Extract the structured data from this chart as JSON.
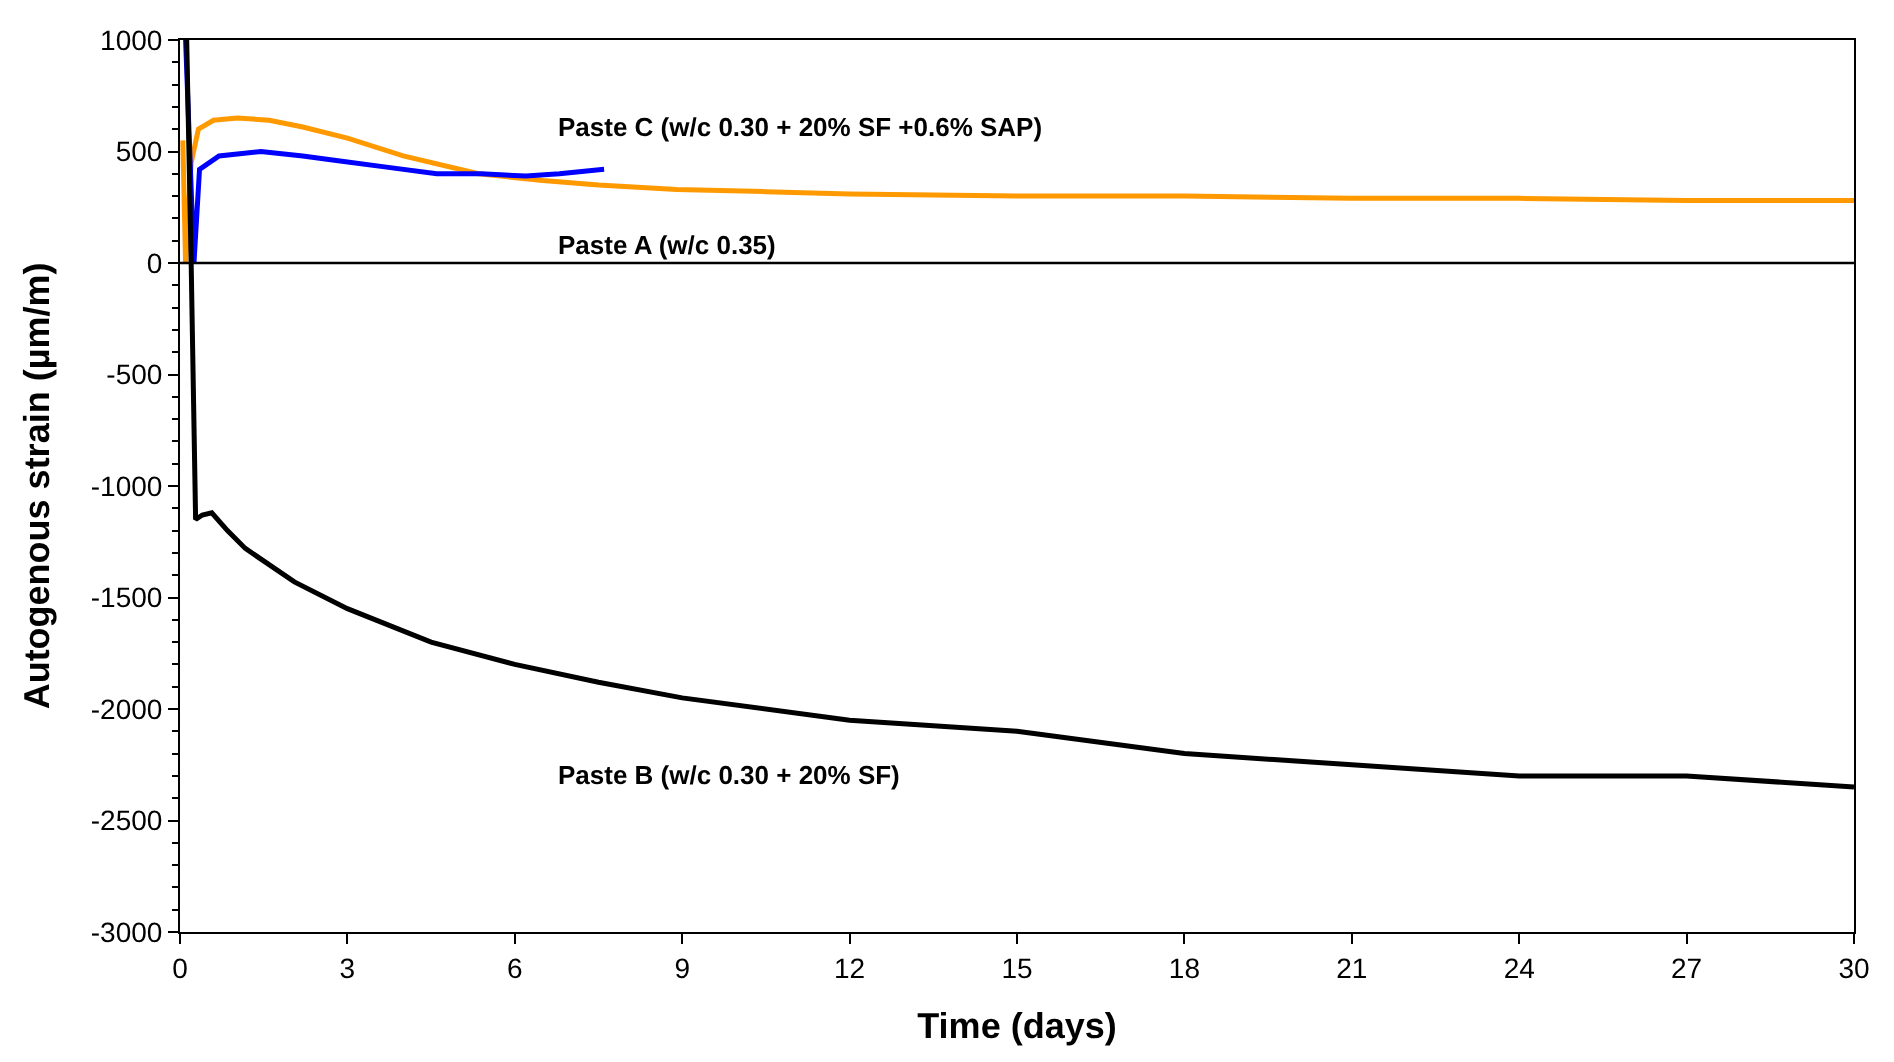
{
  "chart_data": {
    "type": "line",
    "xlabel": "Time (days)",
    "ylabel": "Autogenous strain (µm/m)",
    "xlim": [
      0,
      30
    ],
    "xticks": [
      0,
      3,
      6,
      9,
      12,
      15,
      18,
      21,
      24,
      27,
      30
    ],
    "ylim": [
      -3000,
      1000
    ],
    "yticks": [
      -3000,
      -2500,
      -2000,
      -1500,
      -1000,
      -500,
      0,
      500,
      1000
    ],
    "grid": false,
    "legend": false,
    "marker": "none",
    "line_style": "solid",
    "ref_lines": [
      {
        "axis": "y",
        "value": 0,
        "label": null,
        "color": "#000000"
      }
    ],
    "series": [
      {
        "name": "Paste A (w/c 0.35)",
        "color": "#ff9900",
        "x": [
          0.05,
          0.1,
          0.2,
          0.33,
          0.6,
          1.03,
          1.6,
          2.2,
          3,
          4,
          5.35,
          6.5,
          7.5,
          8.9,
          10.5,
          12,
          15,
          18,
          21,
          24,
          27,
          30
        ],
        "values": [
          550,
          0,
          450,
          600,
          640,
          650,
          640,
          610,
          560,
          480,
          400,
          370,
          350,
          330,
          320,
          310,
          300,
          300,
          290,
          290,
          280,
          280
        ]
      },
      {
        "name": "Paste C (w/c 0.30 + 20% SF +0.6% SAP)",
        "color": "#0000ff",
        "x": [
          0.1,
          0.25,
          0.35,
          0.7,
          1.45,
          2.2,
          2.8,
          3.7,
          4.6,
          5.4,
          6.2,
          6.8,
          7.2,
          7.6
        ],
        "values": [
          1000,
          0,
          420,
          480,
          500,
          480,
          460,
          430,
          400,
          400,
          390,
          400,
          410,
          420
        ]
      },
      {
        "name": "Paste B (w/c 0.30 + 20% SF)",
        "color": "#000000",
        "x": [
          0.12,
          0.2,
          0.28,
          0.4,
          0.57,
          0.85,
          1.17,
          2.05,
          3,
          4.5,
          6,
          7.5,
          9,
          12,
          15,
          18,
          21,
          24,
          27,
          30
        ],
        "values": [
          1000,
          0,
          -1150,
          -1130,
          -1120,
          -1200,
          -1280,
          -1430,
          -1550,
          -1700,
          -1800,
          -1880,
          -1950,
          -2050,
          -2100,
          -2200,
          -2250,
          -2300,
          -2300,
          -2350
        ]
      }
    ]
  }
}
